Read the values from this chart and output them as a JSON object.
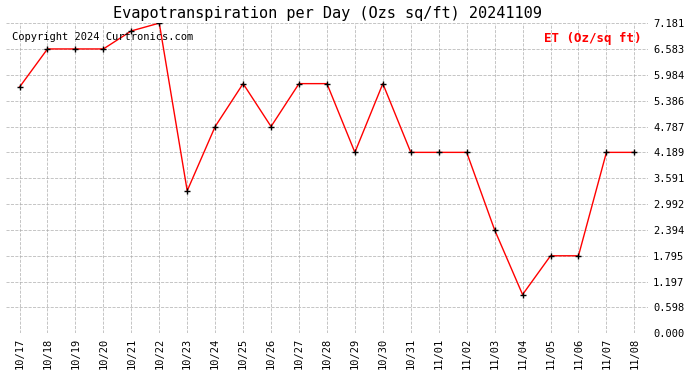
{
  "title": "Evapotranspiration per Day (Ozs sq/ft) 20241109",
  "copyright": "Copyright 2024 Curtronics.com",
  "legend_label": "ET (Oz/sq ft)",
  "legend_color": "#ff0000",
  "line_color": "#ff0000",
  "marker_color": "#000000",
  "background_color": "#ffffff",
  "grid_color": "#aaaaaa",
  "x_labels": [
    "10/17",
    "10/18",
    "10/19",
    "10/20",
    "10/21",
    "10/22",
    "10/23",
    "10/24",
    "10/25",
    "10/26",
    "10/27",
    "10/28",
    "10/29",
    "10/30",
    "10/31",
    "11/01",
    "11/02",
    "11/03",
    "11/04",
    "11/05",
    "11/06",
    "11/07",
    "11/08"
  ],
  "y_values": [
    5.7,
    6.583,
    6.583,
    6.583,
    7.0,
    7.181,
    3.3,
    4.787,
    5.78,
    4.787,
    5.78,
    5.78,
    4.189,
    5.78,
    4.189,
    4.189,
    4.189,
    2.394,
    0.897,
    1.795,
    1.795,
    4.189,
    4.189
  ],
  "yticks": [
    0.0,
    0.598,
    1.197,
    1.795,
    2.394,
    2.992,
    3.591,
    4.189,
    4.787,
    5.386,
    5.984,
    6.583,
    7.181
  ],
  "ylim": [
    0.0,
    7.181
  ],
  "title_fontsize": 11,
  "tick_fontsize": 7.5,
  "legend_fontsize": 9,
  "copyright_fontsize": 7.5
}
